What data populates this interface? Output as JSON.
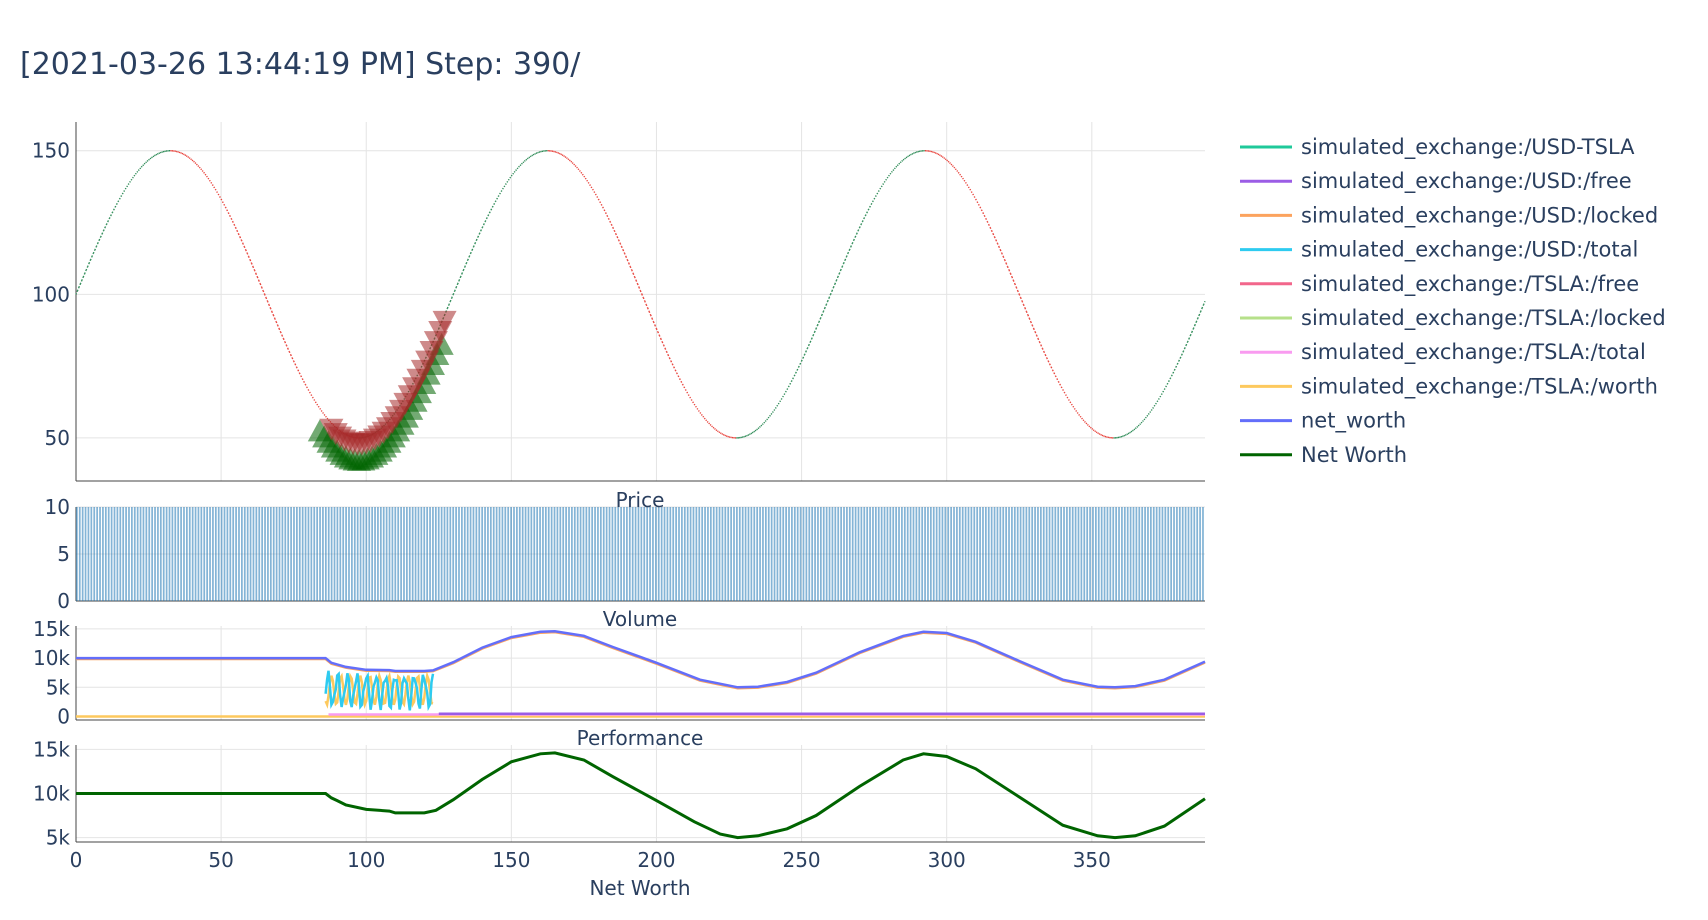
{
  "title": "[2021-03-26 13:44:19 PM] Step: 390/",
  "colors": {
    "rise": "#2e8b57",
    "fall": "#e8433c",
    "buy": "#006400",
    "sell": "#a52a2a",
    "volume": "#1f77b4",
    "usd_tsla": "#1fc99a",
    "usd_free": "#9b5de5",
    "usd_locked": "#fca35e",
    "usd_total": "#2ecbf0",
    "tsla_free": "#f2668b",
    "tsla_locked": "#b6e08a",
    "tsla_total": "#f99bf0",
    "tsla_worth": "#fdc95e",
    "net_worth": "#636efa",
    "performance": "#006400"
  },
  "chart_data": [
    {
      "type": "line",
      "name": "price",
      "x_range": [
        0,
        389
      ],
      "ylim": [
        35,
        160
      ],
      "yticks": [
        "50",
        "100",
        "150"
      ],
      "ytick_values": [
        50,
        100,
        150
      ],
      "xticks": [
        "0",
        "50",
        "100",
        "150",
        "200",
        "250",
        "300",
        "350"
      ],
      "xtick_values": [
        0,
        50,
        100,
        150,
        200,
        250,
        300,
        350
      ],
      "function": "100 + 50*sin(2*pi*x/130)",
      "buy_markers": {
        "x_start": 84,
        "x_end": 127,
        "price_offset": -8
      },
      "sell_markers": {
        "x_start": 88,
        "x_end": 127,
        "price_offset": -2
      }
    },
    {
      "type": "bar",
      "name": "volume",
      "subtitle": "Price",
      "x_range": [
        0,
        389
      ],
      "value": 10,
      "ylim": [
        0,
        10
      ],
      "yticks": [
        "0",
        "5",
        "10"
      ],
      "ytick_values": [
        0,
        5,
        10
      ]
    },
    {
      "type": "line",
      "name": "portfolio",
      "subtitle": "Volume",
      "ylim": [
        -600,
        15500
      ],
      "yticks": [
        "0",
        "5k",
        "10k",
        "15k"
      ],
      "ytick_values": [
        0,
        5000,
        10000,
        15000
      ],
      "series": [
        {
          "name": "simulated_exchange:/USD-TSLA",
          "key": "usd_tsla"
        },
        {
          "name": "simulated_exchange:/USD:/free",
          "key": "usd_free"
        },
        {
          "name": "simulated_exchange:/USD:/locked",
          "key": "usd_locked"
        },
        {
          "name": "simulated_exchange:/USD:/total",
          "key": "usd_total"
        },
        {
          "name": "simulated_exchange:/TSLA:/free",
          "key": "tsla_free"
        },
        {
          "name": "simulated_exchange:/TSLA:/locked",
          "key": "tsla_locked"
        },
        {
          "name": "simulated_exchange:/TSLA:/total",
          "key": "tsla_total"
        },
        {
          "name": "simulated_exchange:/TSLA:/worth",
          "key": "tsla_worth"
        },
        {
          "name": "net_worth",
          "key": "net_worth"
        }
      ],
      "net_worth_points": [
        [
          0,
          10000
        ],
        [
          86,
          10000
        ],
        [
          88,
          9200
        ],
        [
          93,
          8500
        ],
        [
          100,
          8000
        ],
        [
          108,
          7950
        ],
        [
          110,
          7800
        ],
        [
          120,
          7800
        ],
        [
          123,
          7900
        ],
        [
          130,
          9300
        ],
        [
          140,
          11800
        ],
        [
          150,
          13600
        ],
        [
          160,
          14500
        ],
        [
          165,
          14600
        ],
        [
          175,
          13800
        ],
        [
          185,
          11900
        ],
        [
          200,
          9200
        ],
        [
          215,
          6300
        ],
        [
          228,
          5000
        ],
        [
          235,
          5100
        ],
        [
          245,
          5900
        ],
        [
          255,
          7500
        ],
        [
          270,
          11000
        ],
        [
          285,
          13800
        ],
        [
          292,
          14500
        ],
        [
          300,
          14300
        ],
        [
          310,
          12800
        ],
        [
          325,
          9500
        ],
        [
          340,
          6300
        ],
        [
          352,
          5100
        ],
        [
          358,
          5000
        ],
        [
          365,
          5200
        ],
        [
          375,
          6300
        ],
        [
          389,
          9400
        ]
      ]
    },
    {
      "type": "line",
      "name": "net_worth_chart",
      "subtitle": "Performance",
      "xlabel": "Net Worth",
      "ylim": [
        4500,
        15500
      ],
      "yticks": [
        "5k",
        "10k",
        "15k"
      ],
      "ytick_values": [
        5000,
        10000,
        15000
      ],
      "series": [
        {
          "name": "Net Worth",
          "key": "performance"
        }
      ],
      "points": [
        [
          0,
          10000
        ],
        [
          86,
          10000
        ],
        [
          88,
          9500
        ],
        [
          90,
          9200
        ],
        [
          93,
          8700
        ],
        [
          100,
          8200
        ],
        [
          108,
          8000
        ],
        [
          110,
          7800
        ],
        [
          120,
          7800
        ],
        [
          124,
          8100
        ],
        [
          130,
          9300
        ],
        [
          140,
          11600
        ],
        [
          150,
          13600
        ],
        [
          160,
          14500
        ],
        [
          165,
          14600
        ],
        [
          175,
          13800
        ],
        [
          185,
          11900
        ],
        [
          200,
          9200
        ],
        [
          213,
          6800
        ],
        [
          222,
          5400
        ],
        [
          228,
          5000
        ],
        [
          235,
          5200
        ],
        [
          245,
          6000
        ],
        [
          255,
          7500
        ],
        [
          270,
          10800
        ],
        [
          285,
          13800
        ],
        [
          292,
          14500
        ],
        [
          300,
          14200
        ],
        [
          310,
          12800
        ],
        [
          325,
          9600
        ],
        [
          340,
          6400
        ],
        [
          352,
          5200
        ],
        [
          358,
          5000
        ],
        [
          365,
          5200
        ],
        [
          375,
          6300
        ],
        [
          389,
          9400
        ]
      ]
    }
  ],
  "legend": {
    "items": [
      {
        "label": "simulated_exchange:/USD-TSLA",
        "color": "#1fc99a"
      },
      {
        "label": "simulated_exchange:/USD:/free",
        "color": "#9b5de5"
      },
      {
        "label": "simulated_exchange:/USD:/locked",
        "color": "#fca35e"
      },
      {
        "label": "simulated_exchange:/USD:/total",
        "color": "#2ecbf0"
      },
      {
        "label": "simulated_exchange:/TSLA:/free",
        "color": "#f2668b"
      },
      {
        "label": "simulated_exchange:/TSLA:/locked",
        "color": "#b6e08a"
      },
      {
        "label": "simulated_exchange:/TSLA:/total",
        "color": "#f99bf0"
      },
      {
        "label": "simulated_exchange:/TSLA:/worth",
        "color": "#fdc95e"
      },
      {
        "label": "net_worth",
        "color": "#636efa"
      },
      {
        "label": "Net Worth",
        "color": "#006400"
      }
    ]
  }
}
